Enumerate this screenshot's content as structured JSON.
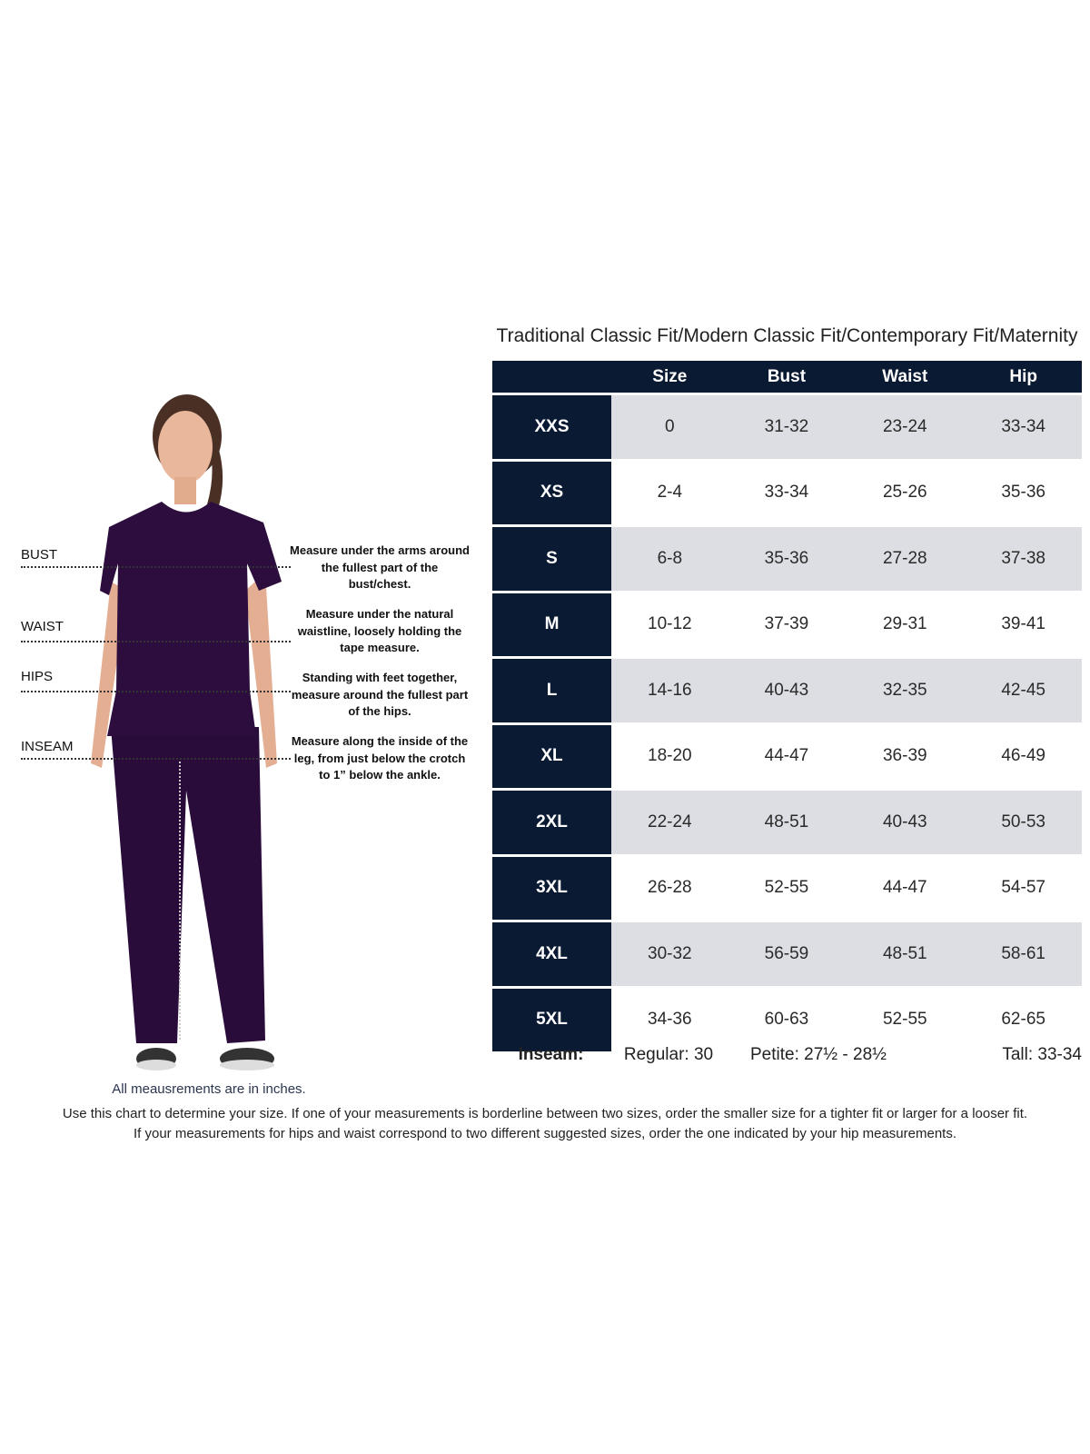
{
  "title": "Traditional Classic Fit/Modern Classic Fit/Contemporary Fit/Maternity",
  "columns": [
    "",
    "Size",
    "Bust",
    "Waist",
    "Hip"
  ],
  "rows": [
    {
      "label": "XXS",
      "size": "0",
      "bust": "31-32",
      "waist": "23-24",
      "hip": "33-34"
    },
    {
      "label": "XS",
      "size": "2-4",
      "bust": "33-34",
      "waist": "25-26",
      "hip": "35-36"
    },
    {
      "label": "S",
      "size": "6-8",
      "bust": "35-36",
      "waist": "27-28",
      "hip": "37-38"
    },
    {
      "label": "M",
      "size": "10-12",
      "bust": "37-39",
      "waist": "29-31",
      "hip": "39-41"
    },
    {
      "label": "L",
      "size": "14-16",
      "bust": "40-43",
      "waist": "32-35",
      "hip": "42-45"
    },
    {
      "label": "XL",
      "size": "18-20",
      "bust": "44-47",
      "waist": "36-39",
      "hip": "46-49"
    },
    {
      "label": "2XL",
      "size": "22-24",
      "bust": "48-51",
      "waist": "40-43",
      "hip": "50-53"
    },
    {
      "label": "3XL",
      "size": "26-28",
      "bust": "52-55",
      "waist": "44-47",
      "hip": "54-57"
    },
    {
      "label": "4XL",
      "size": "30-32",
      "bust": "56-59",
      "waist": "48-51",
      "hip": "58-61"
    },
    {
      "label": "5XL",
      "size": "34-36",
      "bust": "60-63",
      "waist": "52-55",
      "hip": "62-65"
    }
  ],
  "inseam": {
    "label": "Inseam:",
    "regular": "Regular: 30",
    "petite": "Petite: 27½ - 28½",
    "tall": "Tall: 33-34"
  },
  "measurements": [
    {
      "label": "BUST",
      "description": "Measure under the arms around the fullest part of the bust/chest."
    },
    {
      "label": "WAIST",
      "description": "Measure under the natural waistline, loosely holding the tape measure."
    },
    {
      "label": "HIPS",
      "description": "Standing with feet together, measure around the fullest part of the hips."
    },
    {
      "label": "INSEAM",
      "description": "Measure along the inside of the leg, from just below the crotch to 1” below the ankle."
    }
  ],
  "units_note": "All meausrements are in inches.",
  "footnote_1": "Use this chart to determine your size. If one of your measurements is borderline between two sizes, order the smaller size for a tighter fit or larger for a looser fit.",
  "footnote_2": "If your measurements for hips and waist correspond to two different suggested sizes, order the one indicated by your hip measurements.",
  "colors": {
    "header": "#0b1a33",
    "stripe": "#dcdee3",
    "scrubs": "#2c0d3d"
  }
}
